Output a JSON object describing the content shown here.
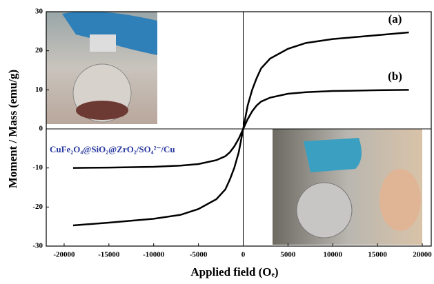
{
  "chart_data": {
    "type": "line",
    "xlabel": "Applied field (Oₑ)",
    "ylabel": "Moment / Mass (emu/g)",
    "annotation": "CuFe₂O₄@SiO₂@ZrO₂/SO₄²⁻/Cu",
    "xlim": [
      -22000,
      21000
    ],
    "ylim": [
      -30,
      30
    ],
    "xticks": [
      -20000,
      -15000,
      -10000,
      -5000,
      0,
      5000,
      10000,
      15000,
      20000
    ],
    "yticks": [
      -30,
      -20,
      -10,
      0,
      10,
      20,
      30
    ],
    "x": [
      -19000,
      -15000,
      -10000,
      -7000,
      -5000,
      -3000,
      -2000,
      -1500,
      -1000,
      -500,
      0,
      500,
      1000,
      1500,
      2000,
      3000,
      5000,
      7000,
      10000,
      15000,
      18500
    ],
    "series": [
      {
        "name": "(a)",
        "color": "#000000",
        "values": [
          -24.7,
          -24,
          -23,
          -22,
          -20.5,
          -18,
          -15.5,
          -13,
          -10,
          -6,
          0,
          6,
          10,
          13,
          15.5,
          18,
          20.5,
          22,
          23,
          24,
          24.7
        ]
      },
      {
        "name": "(b)",
        "color": "#000000",
        "values": [
          -10,
          -9.9,
          -9.7,
          -9.4,
          -9,
          -8,
          -7,
          -6,
          -4.5,
          -2.5,
          0,
          2.5,
          4.5,
          6,
          7,
          8,
          9,
          9.4,
          9.7,
          9.9,
          10
        ]
      }
    ]
  }
}
